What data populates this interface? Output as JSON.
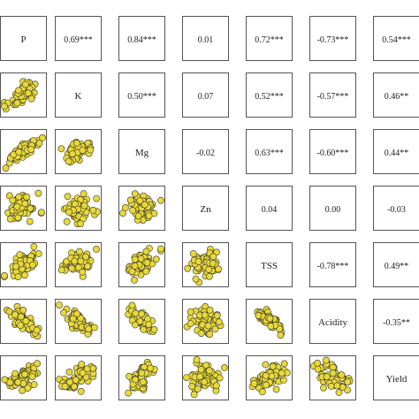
{
  "chart_data": {
    "type": "scatter-matrix",
    "variables": [
      "P",
      "K",
      "Mg",
      "Zn",
      "TSS",
      "Acidity",
      "Yield"
    ],
    "correlations": [
      [
        "",
        "0.69***",
        "0.84***",
        "0.01",
        "0.72***",
        "-0.73***",
        "0.54***"
      ],
      [
        "",
        "",
        "0.50***",
        "0.07",
        "0.52***",
        "-0.57***",
        "0.46**"
      ],
      [
        "",
        "",
        "",
        "-0.02",
        "0.63***",
        "-0.60***",
        "0.44**"
      ],
      [
        "",
        "",
        "",
        "",
        "0.04",
        "0.00",
        "-0.03"
      ],
      [
        "",
        "",
        "",
        "",
        "",
        "-0.78***",
        "0.49**"
      ],
      [
        "",
        "",
        "",
        "",
        "",
        "",
        "-0.35**"
      ],
      [
        "",
        "",
        "",
        "",
        "",
        "",
        ""
      ]
    ],
    "grid": false,
    "colors": {
      "point_fill": "#e8d83a",
      "point_stroke": "#3a3a2a",
      "panel_border": "#555555"
    }
  }
}
